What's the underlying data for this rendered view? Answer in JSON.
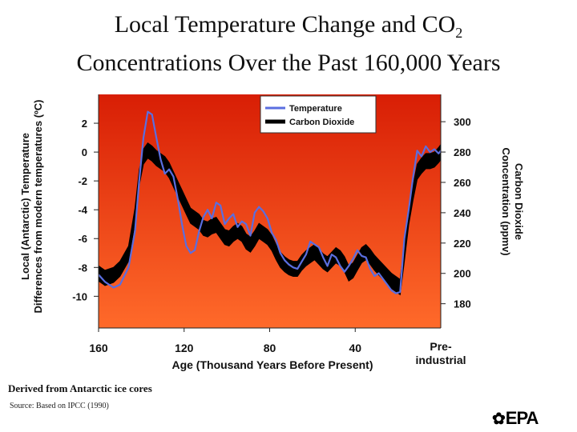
{
  "title_line1": "Local Temperature Change and CO",
  "title_sub": "2",
  "title_line2": "Concentrations Over the Past 160,000 Years",
  "note": "Derived from Antarctic ice cores",
  "source": "Source: Based on IPCC (1990)",
  "logo_text": "EPA",
  "colors": {
    "plot_bg_top": "#d81e05",
    "plot_bg_bottom": "#ff6a2a",
    "temperature": "#5a6ee0",
    "co2": "#000000"
  },
  "chart_data": {
    "type": "line",
    "xlabel": "Age (Thousand Years Before Present)",
    "ylabel_left_line1": "Local (Antarctic) Temperature",
    "ylabel_left_line2": "Differences from modern temperatures (ºC)",
    "ylabel_right_line1": "Carbon Dioxide",
    "ylabel_right_line2": "Concentration (ppmv)",
    "x_ticks": [
      {
        "value": 160,
        "label": "160"
      },
      {
        "value": 120,
        "label": "120"
      },
      {
        "value": 80,
        "label": "80"
      },
      {
        "value": 40,
        "label": "40"
      }
    ],
    "x_end_label_line1": "Pre-",
    "x_end_label_line2": "industrial",
    "xlim": [
      160,
      0
    ],
    "y_left_ticks": [
      2,
      0,
      -2,
      -4,
      -6,
      -8,
      -10
    ],
    "y_left_lim": [
      -12.2,
      4.0
    ],
    "y_right_ticks": [
      300,
      280,
      260,
      240,
      220,
      200,
      180
    ],
    "y_right_lim": [
      164,
      318
    ],
    "legend_position": "top-right",
    "series": [
      {
        "name": "Temperature",
        "axis": "left",
        "x": [
          160,
          157,
          153,
          150,
          146,
          143,
          141,
          139,
          137,
          135,
          133,
          131,
          129,
          127,
          125,
          123,
          121,
          119,
          117,
          115,
          113,
          111,
          109,
          107,
          105,
          103,
          101,
          99,
          97,
          95,
          93,
          91,
          89,
          87,
          85,
          83,
          81,
          79,
          77,
          75,
          73,
          71,
          69,
          67,
          65,
          63,
          61,
          59,
          57,
          55,
          53,
          51,
          49,
          47,
          45,
          43,
          41,
          39,
          37,
          35,
          33,
          31,
          29,
          27,
          25,
          23,
          21,
          19,
          17,
          15,
          13,
          11,
          9,
          7,
          5,
          3,
          1,
          0
        ],
        "y": [
          -8.5,
          -9.0,
          -9.4,
          -9.2,
          -8.0,
          -5.5,
          -2.0,
          1.0,
          2.8,
          2.6,
          1.0,
          -0.5,
          -1.5,
          -1.2,
          -1.7,
          -3.2,
          -5.0,
          -6.5,
          -7.0,
          -6.8,
          -5.5,
          -4.5,
          -4.0,
          -4.6,
          -3.5,
          -3.7,
          -5.0,
          -4.6,
          -4.3,
          -5.2,
          -4.8,
          -5.0,
          -5.8,
          -4.2,
          -3.8,
          -4.1,
          -4.6,
          -5.6,
          -6.1,
          -7.0,
          -7.5,
          -7.8,
          -8.0,
          -8.1,
          -7.6,
          -7.1,
          -6.2,
          -6.4,
          -6.6,
          -7.3,
          -7.9,
          -7.1,
          -7.3,
          -7.9,
          -8.3,
          -7.9,
          -7.4,
          -6.8,
          -7.2,
          -7.3,
          -8.1,
          -8.6,
          -8.4,
          -8.8,
          -9.2,
          -9.6,
          -9.8,
          -9.7,
          -6.0,
          -4.0,
          -1.8,
          0.1,
          -0.3,
          0.4,
          0.0,
          0.2,
          -0.1,
          0.1
        ]
      },
      {
        "name": "Carbon Dioxide",
        "axis": "right",
        "x": [
          160,
          157,
          153,
          150,
          146,
          143,
          141,
          139,
          137,
          135,
          133,
          131,
          129,
          127,
          125,
          123,
          121,
          119,
          117,
          115,
          113,
          111,
          109,
          107,
          105,
          103,
          101,
          99,
          97,
          95,
          93,
          91,
          89,
          87,
          85,
          83,
          81,
          79,
          77,
          75,
          73,
          71,
          69,
          67,
          65,
          63,
          61,
          59,
          57,
          55,
          53,
          51,
          49,
          47,
          45,
          43,
          41,
          39,
          37,
          35,
          33,
          31,
          29,
          27,
          25,
          23,
          21,
          19,
          17,
          15,
          13,
          11,
          9,
          7,
          5,
          3,
          1,
          0
        ],
        "y": [
          200,
          197,
          199,
          203,
          213,
          238,
          263,
          277,
          281,
          279,
          276,
          274,
          272,
          268,
          262,
          256,
          250,
          244,
          238,
          236,
          234,
          230,
          229,
          231,
          232,
          228,
          224,
          223,
          226,
          228,
          226,
          221,
          219,
          223,
          228,
          226,
          224,
          220,
          214,
          209,
          206,
          204,
          203,
          203,
          207,
          210,
          212,
          214,
          211,
          208,
          206,
          209,
          212,
          210,
          206,
          200,
          202,
          207,
          212,
          214,
          211,
          207,
          204,
          201,
          198,
          195,
          193,
          191,
          213,
          237,
          253,
          267,
          271,
          274,
          274,
          275,
          278,
          280
        ],
        "band_half_width": 5
      }
    ]
  }
}
